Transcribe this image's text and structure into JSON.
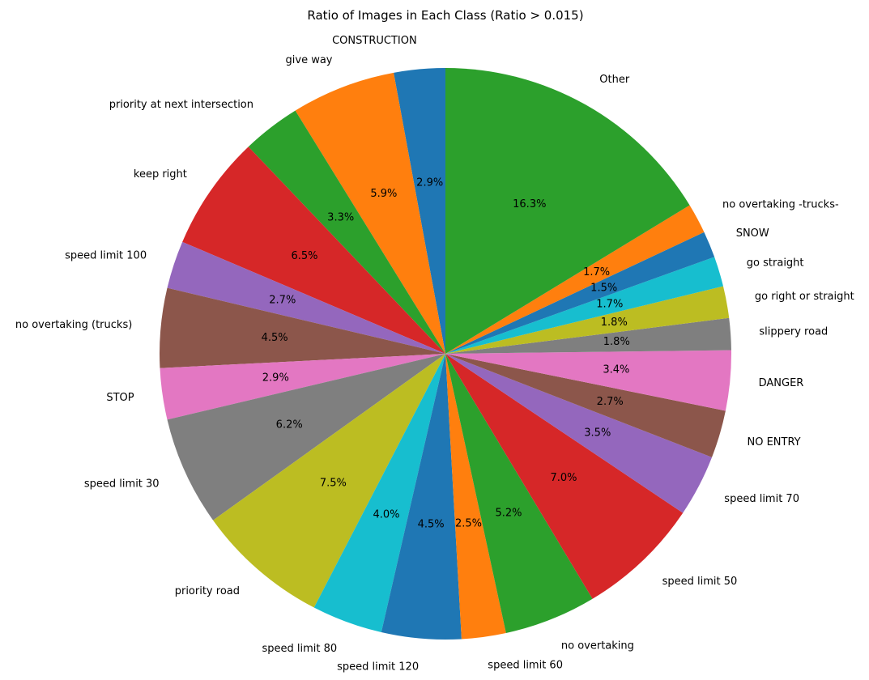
{
  "chart_data": {
    "type": "pie",
    "title": "Ratio of Images in Each Class (Ratio > 0.015)",
    "start_angle_deg": 90,
    "direction": "counterclockwise",
    "slices": [
      {
        "label": "CONSTRUCTION",
        "value": 2.9,
        "pct_text": "2.9%",
        "color": "#1f77b4"
      },
      {
        "label": "give way",
        "value": 5.9,
        "pct_text": "5.9%",
        "color": "#ff7f0e"
      },
      {
        "label": "priority at next intersection",
        "value": 3.3,
        "pct_text": "3.3%",
        "color": "#2ca02c"
      },
      {
        "label": "keep right",
        "value": 6.5,
        "pct_text": "6.5%",
        "color": "#d62728"
      },
      {
        "label": "speed limit 100",
        "value": 2.7,
        "pct_text": "2.7%",
        "color": "#9467bd"
      },
      {
        "label": "no overtaking (trucks)",
        "value": 4.5,
        "pct_text": "4.5%",
        "color": "#8c564b"
      },
      {
        "label": "STOP",
        "value": 2.9,
        "pct_text": "2.9%",
        "color": "#e377c2"
      },
      {
        "label": "speed limit 30",
        "value": 6.2,
        "pct_text": "6.2%",
        "color": "#7f7f7f"
      },
      {
        "label": "priority road",
        "value": 7.5,
        "pct_text": "7.5%",
        "color": "#bcbd22"
      },
      {
        "label": "speed limit 80",
        "value": 4.0,
        "pct_text": "4.0%",
        "color": "#17becf"
      },
      {
        "label": "speed limit 120",
        "value": 4.5,
        "pct_text": "4.5%",
        "color": "#1f77b4"
      },
      {
        "label": "speed limit 60",
        "value": 2.5,
        "pct_text": "2.5%",
        "color": "#ff7f0e"
      },
      {
        "label": "no overtaking",
        "value": 5.2,
        "pct_text": "5.2%",
        "color": "#2ca02c"
      },
      {
        "label": "speed limit 50",
        "value": 7.0,
        "pct_text": "7.0%",
        "color": "#d62728"
      },
      {
        "label": "speed limit 70",
        "value": 3.5,
        "pct_text": "3.5%",
        "color": "#9467bd"
      },
      {
        "label": "NO ENTRY",
        "value": 2.7,
        "pct_text": "2.7%",
        "color": "#8c564b"
      },
      {
        "label": "DANGER",
        "value": 3.4,
        "pct_text": "3.4%",
        "color": "#e377c2"
      },
      {
        "label": "slippery road",
        "value": 1.8,
        "pct_text": "1.8%",
        "color": "#7f7f7f"
      },
      {
        "label": "go right or straight",
        "value": 1.8,
        "pct_text": "1.8%",
        "color": "#bcbd22"
      },
      {
        "label": "go straight",
        "value": 1.7,
        "pct_text": "1.7%",
        "color": "#17becf"
      },
      {
        "label": "SNOW",
        "value": 1.5,
        "pct_text": "1.5%",
        "color": "#1f77b4"
      },
      {
        "label": "no overtaking -trucks-",
        "value": 1.7,
        "pct_text": "1.7%",
        "color": "#ff7f0e"
      },
      {
        "label": "Other",
        "value": 16.3,
        "pct_text": "16.3%",
        "color": "#2ca02c"
      }
    ]
  }
}
